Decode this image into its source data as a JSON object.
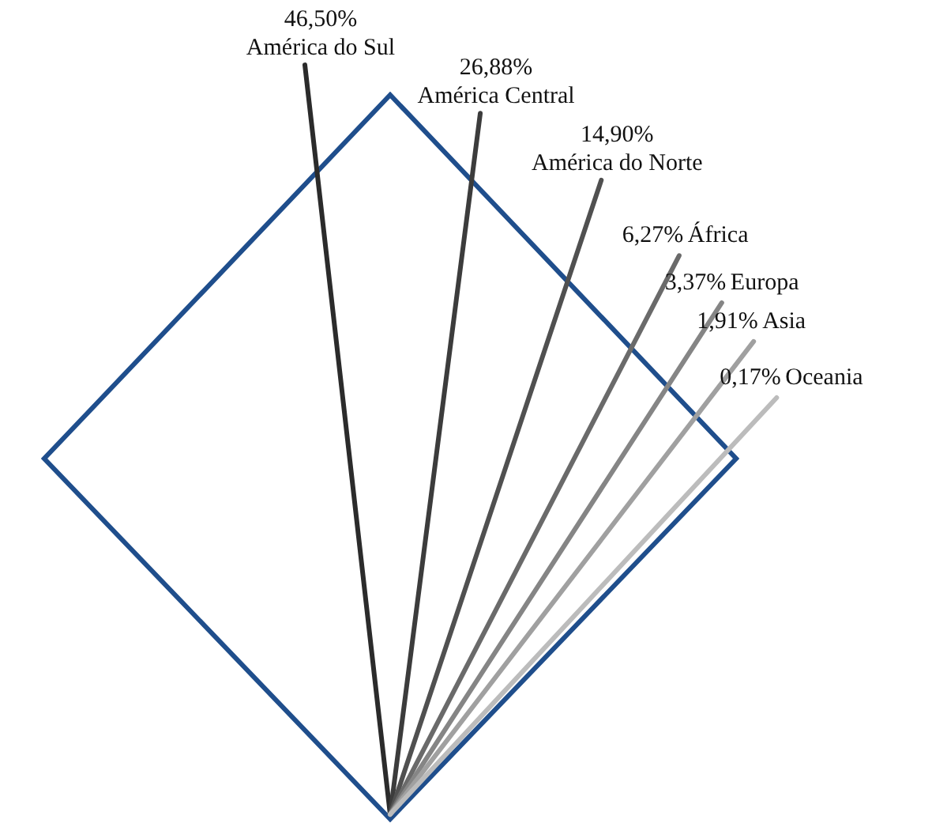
{
  "chart_data": {
    "type": "other",
    "categories": [
      "América do Sul",
      "América Central",
      "América do Norte",
      "África",
      "Europa",
      "Asia",
      "Oceania"
    ],
    "values": [
      46.5,
      26.88,
      14.9,
      6.27,
      3.37,
      1.91,
      0.17
    ],
    "value_labels": [
      "46,50%",
      "26,88%",
      "14,90%",
      "6,27%",
      "3,37%",
      "1,91%",
      "0,17%"
    ],
    "colors": [
      "#2b2b2b",
      "#3c3c3c",
      "#505050",
      "#6a6a6a",
      "#858585",
      "#a0a0a0",
      "#bcbcbc"
    ],
    "data_labels": true
  }
}
